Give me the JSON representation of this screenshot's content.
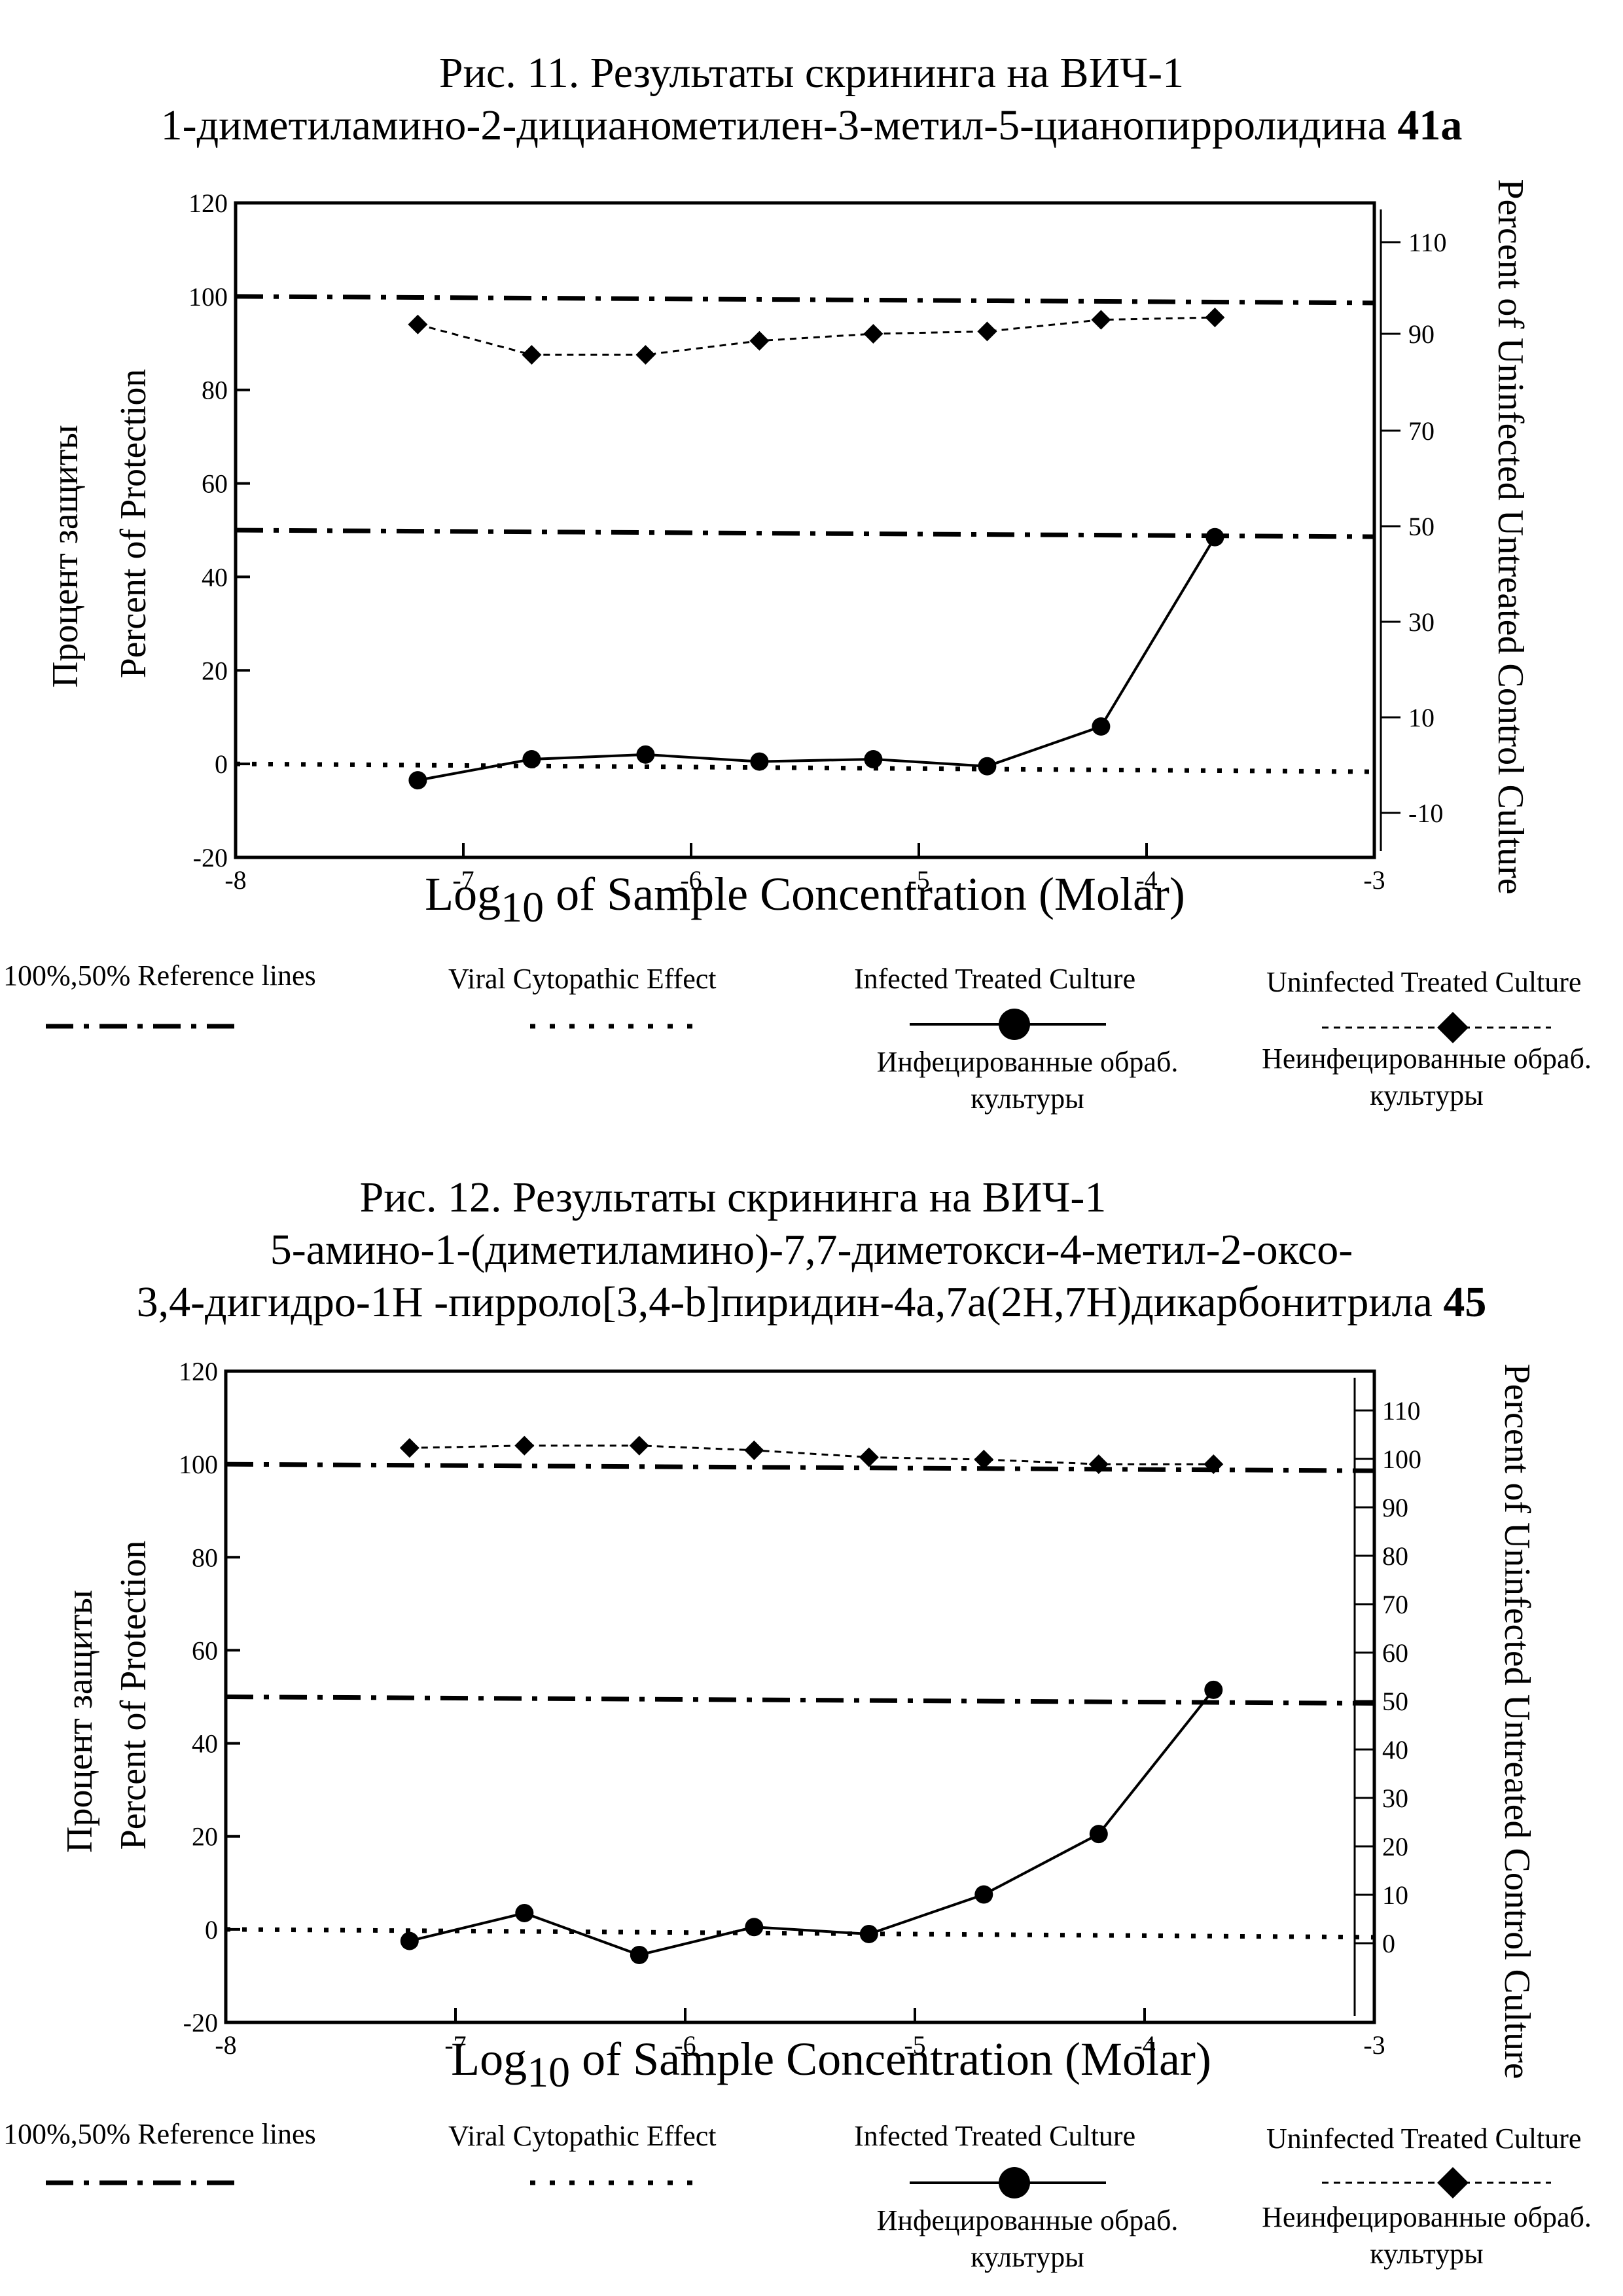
{
  "figures": [
    {
      "title_lines": [
        "Рис. 11. Результаты скрининга на ВИЧ-1",
        "1-диметиламино-2-дицианометилен-3-метил-5-цианопирролидина"
      ],
      "compound_number": "41a",
      "left_axis_label_ru": "Процент защиты",
      "left_axis_label_en": "Percent of Protection",
      "right_axis_label": "Percent of Uninfected Untreated Control Culture",
      "x_axis_label_prefix": "Log",
      "x_axis_label_sub": "10",
      "x_axis_label_suffix": "of Sample Concentration (Molar)",
      "legend": {
        "reference_lines": "100%,50% Reference lines",
        "viral_cpe": "Viral Cytopathic Effect",
        "infected_treated": "Infected Treated Culture",
        "infected_treated_ru": [
          "Инфецированные обраб.",
          "культуры"
        ],
        "uninfected_treated": "Uninfected Treated Culture",
        "uninfected_treated_ru": [
          "Неинфецированные обраб.",
          "культуры"
        ]
      }
    },
    {
      "title_lines": [
        "Рис. 12. Результаты скрининга на ВИЧ-1",
        "5-амино-1-(диметиламино)-7,7-диметокси-4-метил-2-оксо-",
        "3,4-дигидро-1Н -пирроло[3,4-b]пиридин-4а,7а(2Н,7Н)дикарбонитрила"
      ],
      "compound_number": "45",
      "left_axis_label_ru": "Процент защиты",
      "left_axis_label_en": "Percent of Protection",
      "right_axis_label": "Percent of Uninfected Untreated Control Culture",
      "x_axis_label_prefix": "Log",
      "x_axis_label_sub": "10",
      "x_axis_label_suffix": "of Sample Concentration (Molar)",
      "legend": {
        "reference_lines": "100%,50% Reference lines",
        "viral_cpe": "Viral Cytopathic Effect",
        "infected_treated": "Infected Treated Culture",
        "infected_treated_ru": [
          "Инфецированные обраб.",
          "культуры"
        ],
        "uninfected_treated": "Uninfected Treated Culture",
        "uninfected_treated_ru": [
          "Неинфецированные обраб.",
          "культуры"
        ]
      }
    }
  ],
  "chart_data": [
    {
      "type": "line",
      "xlim": [
        -8,
        -3
      ],
      "x_ticks": [
        -8,
        -7,
        -6,
        -5,
        -4,
        -3
      ],
      "ylim_left": [
        -20,
        120
      ],
      "y_ticks_left": [
        -20,
        0,
        20,
        40,
        60,
        80,
        100,
        120
      ],
      "y_ticks_right": [
        110,
        90,
        70,
        50,
        30,
        10,
        -10
      ],
      "reference_lines": [
        100,
        50
      ],
      "viral_cpe_line": 0,
      "series": [
        {
          "name": "Infected Treated Culture",
          "marker": "circle",
          "style": "solid",
          "x": [
            -7.2,
            -6.7,
            -6.2,
            -5.7,
            -5.2,
            -4.7,
            -4.2,
            -3.7
          ],
          "y": [
            -3.5,
            1,
            2,
            0.5,
            1,
            -0.5,
            8,
            48.5
          ]
        },
        {
          "name": "Uninfected Treated Culture",
          "marker": "diamond",
          "style": "dashed",
          "x": [
            -7.2,
            -6.7,
            -6.2,
            -5.7,
            -5.2,
            -4.7,
            -4.2,
            -3.7
          ],
          "y": [
            94,
            87.5,
            87.5,
            90.5,
            92,
            92.5,
            95,
            95.5
          ]
        }
      ]
    },
    {
      "type": "line",
      "xlim": [
        -8,
        -3
      ],
      "x_ticks": [
        -8,
        -7,
        -6,
        -5,
        -4,
        -3
      ],
      "ylim_left": [
        -20,
        120
      ],
      "y_ticks_left": [
        -20,
        0,
        20,
        40,
        60,
        80,
        100,
        120
      ],
      "y_ticks_right": [
        110,
        100,
        90,
        80,
        70,
        60,
        50,
        40,
        30,
        20,
        10,
        0
      ],
      "reference_lines": [
        100,
        50
      ],
      "viral_cpe_line": 0,
      "series": [
        {
          "name": "Infected Treated Culture",
          "marker": "circle",
          "style": "solid",
          "x": [
            -7.2,
            -6.7,
            -6.2,
            -5.7,
            -5.2,
            -4.7,
            -4.2,
            -3.7
          ],
          "y": [
            -2.5,
            3.5,
            -5.5,
            0.5,
            -1,
            7.5,
            20.5,
            51.5
          ]
        },
        {
          "name": "Uninfected Treated Culture",
          "marker": "diamond",
          "style": "dashed",
          "x": [
            -7.2,
            -6.7,
            -6.2,
            -5.7,
            -5.2,
            -4.7,
            -4.2,
            -3.7
          ],
          "y": [
            103.5,
            104,
            104,
            103,
            101.5,
            101,
            100,
            100
          ]
        }
      ]
    }
  ]
}
